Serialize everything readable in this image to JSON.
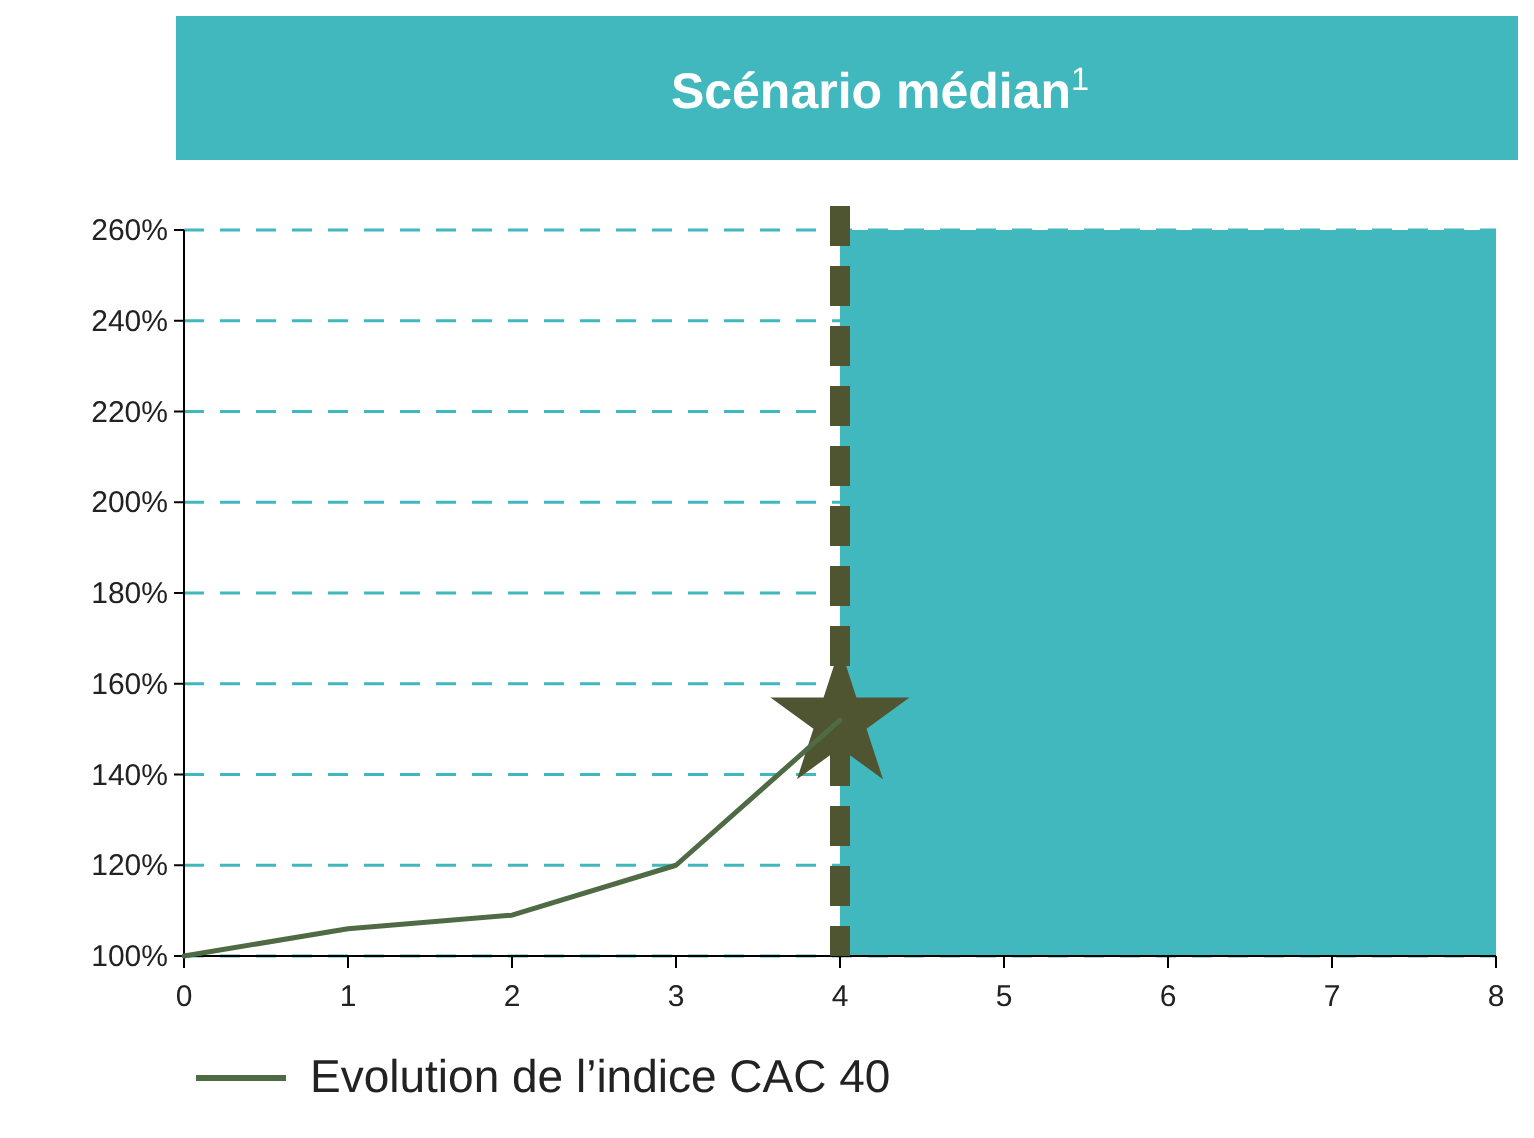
{
  "chart_data": {
    "type": "line",
    "title": "Scénario médian$^{1}$",
    "x": [
      0,
      1,
      2,
      3,
      4
    ],
    "series": [
      {
        "name": "Evolution de l’indice CAC 40",
        "color": "#4f6b45",
        "values": [
          100,
          106,
          109,
          120,
          152
        ],
        "marker": "none"
      },
      {
        "type": "scatter",
        "color": "#4f5530",
        "x": [
          4
        ],
        "values": [
          152
        ],
        "marker": "star"
      }
    ],
    "xlim": [
      0,
      8
    ],
    "xticks": [
      0,
      1,
      2,
      3,
      4,
      5,
      6,
      7,
      8
    ],
    "ylim": [
      100,
      260
    ],
    "yticks": [
      {
        "value": 100,
        "label": "100%"
      },
      {
        "value": 120,
        "label": "120%"
      },
      {
        "value": 140,
        "label": "140%"
      },
      {
        "value": 160,
        "label": "160%"
      },
      {
        "value": 180,
        "label": "180%"
      },
      {
        "value": 200,
        "label": "200%"
      },
      {
        "value": 220,
        "label": "220%"
      },
      {
        "value": 240,
        "label": "240%"
      },
      {
        "value": 260,
        "label": "260%"
      }
    ],
    "grid": "y",
    "ref_lines": [
      {
        "axis": "x",
        "value": 4,
        "color": "#4f5530",
        "line_style": "dashed"
      }
    ],
    "bands": [
      {
        "axis": "x",
        "from": 4,
        "to": 8,
        "color": "#41b8bd"
      }
    ],
    "legend": "bottom left"
  }
}
